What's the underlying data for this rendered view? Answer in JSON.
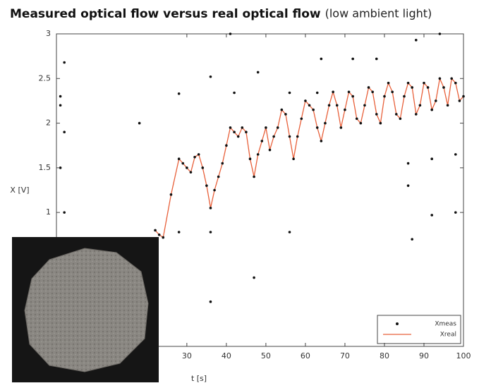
{
  "chart_data": {
    "type": "line",
    "title": "Measured optical flow versus real optical flow",
    "subtitle": "(low ambient light)",
    "x_label": "t [s]",
    "y_label": "X [V]",
    "xlim": [
      -3,
      100
    ],
    "xticks": [
      30,
      40,
      50,
      60,
      70,
      80,
      90,
      100
    ],
    "ylim": [
      -0.5,
      3
    ],
    "yticks": [
      1,
      1.5,
      2,
      2.5,
      3
    ],
    "legend": "lower right",
    "series": [
      {
        "name": "Xmeas",
        "type": "scatter",
        "color": "#111111",
        "x": [
          22,
          23,
          24,
          26,
          28,
          29,
          30,
          31,
          32,
          33,
          34,
          35,
          36,
          37,
          38,
          39,
          40,
          41,
          42,
          43,
          44,
          45,
          46,
          47,
          48,
          49,
          50,
          51,
          52,
          53,
          54,
          55,
          56,
          57,
          58,
          59,
          60,
          61,
          62,
          63,
          64,
          65,
          66,
          67,
          68,
          69,
          70,
          71,
          72,
          73,
          74,
          75,
          76,
          77,
          78,
          79,
          80,
          81,
          82,
          83,
          84,
          85,
          86,
          87,
          88,
          89,
          90,
          91,
          92,
          93,
          94,
          95,
          96,
          97,
          98,
          99,
          100,
          -2,
          -2,
          -1,
          -1,
          -1,
          -2,
          18,
          28,
          36,
          36,
          36,
          42,
          48,
          47,
          56,
          56,
          64,
          72,
          78,
          88,
          94,
          86,
          86,
          92,
          98,
          98,
          92,
          87,
          28,
          41,
          63
        ],
        "values": [
          0.8,
          0.75,
          0.72,
          1.2,
          1.6,
          1.55,
          1.5,
          1.45,
          1.62,
          1.65,
          1.5,
          1.3,
          1.05,
          1.25,
          1.4,
          1.55,
          1.75,
          1.95,
          1.9,
          1.85,
          1.95,
          1.9,
          1.6,
          1.4,
          1.65,
          1.8,
          1.95,
          1.7,
          1.85,
          1.95,
          2.15,
          2.1,
          1.85,
          1.6,
          1.85,
          2.05,
          2.25,
          2.2,
          2.15,
          1.95,
          1.8,
          2.0,
          2.2,
          2.35,
          2.2,
          1.95,
          2.15,
          2.35,
          2.3,
          2.05,
          2.0,
          2.2,
          2.4,
          2.35,
          2.1,
          2.0,
          2.3,
          2.45,
          2.35,
          2.1,
          2.05,
          2.3,
          2.45,
          2.4,
          2.1,
          2.2,
          2.45,
          2.4,
          2.15,
          2.25,
          2.5,
          2.4,
          2.2,
          2.5,
          2.45,
          2.25,
          2.3,
          2.3,
          2.2,
          2.68,
          1.9,
          1.0,
          1.5,
          2.0,
          2.33,
          2.52,
          0.78,
          0.0,
          2.34,
          2.57,
          0.27,
          2.34,
          0.78,
          2.72,
          2.72,
          2.72,
          2.93,
          3.0,
          1.55,
          1.3,
          1.6,
          1.65,
          1.0,
          0.97,
          0.7,
          0.78,
          3.0,
          2.34
        ]
      },
      {
        "name": "Xreal",
        "type": "line",
        "color": "#e8603a",
        "x": [
          22,
          23,
          24,
          26,
          28,
          29,
          30,
          31,
          32,
          33,
          34,
          35,
          36,
          37,
          38,
          39,
          40,
          41,
          42,
          43,
          44,
          45,
          46,
          47,
          48,
          49,
          50,
          51,
          52,
          53,
          54,
          55,
          56,
          57,
          58,
          59,
          60,
          61,
          62,
          63,
          64,
          65,
          66,
          67,
          68,
          69,
          70,
          71,
          72,
          73,
          74,
          75,
          76,
          77,
          78,
          79,
          80,
          81,
          82,
          83,
          84,
          85,
          86,
          87,
          88,
          89,
          90,
          91,
          92,
          93,
          94,
          95,
          96,
          97,
          98,
          99,
          100
        ],
        "values": [
          0.8,
          0.75,
          0.72,
          1.2,
          1.6,
          1.55,
          1.5,
          1.45,
          1.62,
          1.65,
          1.5,
          1.3,
          1.05,
          1.25,
          1.4,
          1.55,
          1.75,
          1.95,
          1.9,
          1.85,
          1.95,
          1.9,
          1.6,
          1.4,
          1.65,
          1.8,
          1.95,
          1.7,
          1.85,
          1.95,
          2.15,
          2.1,
          1.85,
          1.6,
          1.85,
          2.05,
          2.25,
          2.2,
          2.15,
          1.95,
          1.8,
          2.0,
          2.2,
          2.35,
          2.2,
          1.95,
          2.15,
          2.35,
          2.3,
          2.05,
          2.0,
          2.2,
          2.4,
          2.35,
          2.1,
          2.0,
          2.3,
          2.45,
          2.35,
          2.1,
          2.05,
          2.3,
          2.45,
          2.4,
          2.1,
          2.2,
          2.45,
          2.4,
          2.15,
          2.25,
          2.5,
          2.4,
          2.2,
          2.5,
          2.45,
          2.25,
          2.3
        ]
      }
    ]
  }
}
